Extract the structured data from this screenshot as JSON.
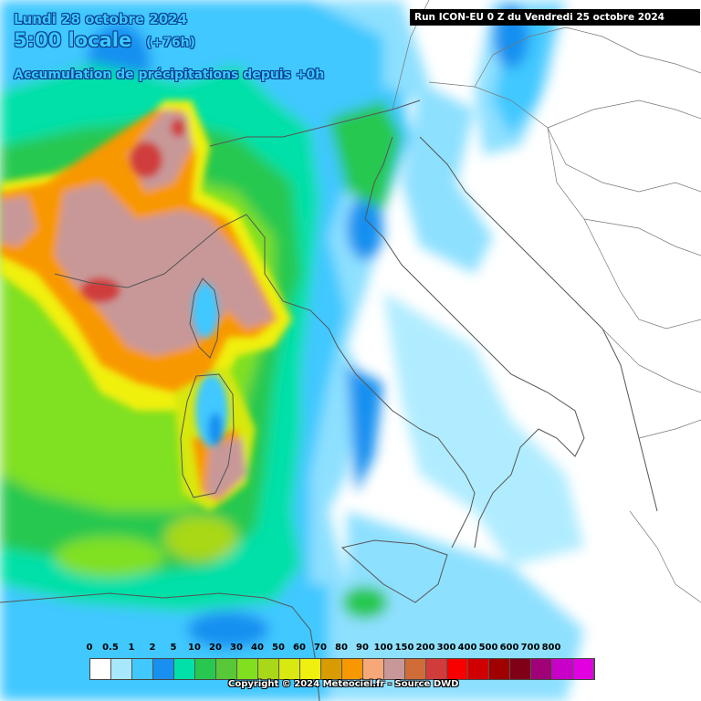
{
  "header": {
    "date": "Lundi 28 octobre 2024",
    "time": "5:00 locale",
    "lead": "(+76h)",
    "title": "Accumulation de précipitations depuis +0h",
    "run": "Run ICON-EU 0 Z du Vendredi 25 octobre 2024"
  },
  "legend": {
    "labels": [
      "0",
      "0.5",
      "1",
      "2",
      "5",
      "10",
      "20",
      "30",
      "40",
      "50",
      "60",
      "70",
      "80",
      "90",
      "100",
      "150",
      "200",
      "300",
      "400",
      "500",
      "600",
      "700",
      "800"
    ],
    "colors": [
      "#ffffff",
      "#a8e8ff",
      "#40c8ff",
      "#1890f0",
      "#00e0a8",
      "#28c850",
      "#58c838",
      "#80e020",
      "#a8d818",
      "#d8e810",
      "#f0f010",
      "#d89c00",
      "#f89800",
      "#f8a878",
      "#c89898",
      "#d06c38",
      "#d03c3c",
      "#f80000",
      "#d00000",
      "#a00000",
      "#800018",
      "#a00078",
      "#c800c8",
      "#e000e0"
    ]
  },
  "copyright": "Copyright © 2024 Meteociel.fr - Source DWD",
  "colors": {
    "sea_background": "#ffffff",
    "text_accent": "#39c8ff",
    "run_box": "#000000"
  }
}
